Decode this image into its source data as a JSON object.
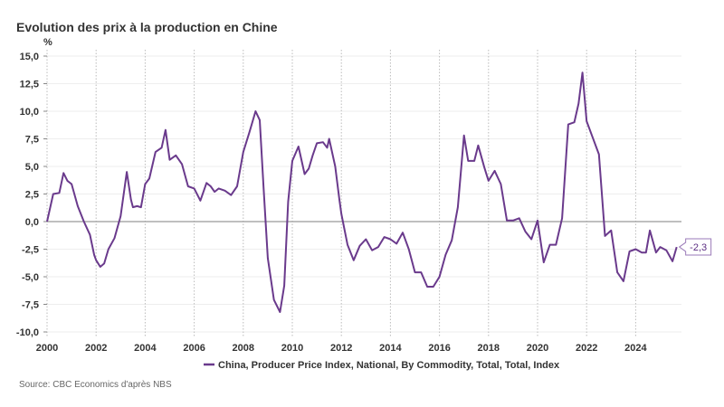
{
  "header": {
    "title": "Evolution des prix à la production en Chine",
    "source": "Source: CBC Economics d'après NBS"
  },
  "colors": {
    "series": "#6a3a8c",
    "zero_line": "#999999",
    "grid": "#eeeeee",
    "vgrid": "#bbbbbb",
    "callout_border": "#9a7ab8"
  },
  "chart_data": {
    "type": "line",
    "title": "Evolution des prix à la production en Chine",
    "ylabel": "%",
    "xlabel": "",
    "ylim": [
      -10,
      15
    ],
    "xlim": [
      2000,
      2025.75
    ],
    "yticks": [
      15,
      12.5,
      10,
      7.5,
      5,
      2.5,
      0,
      -2.5,
      -5,
      -7.5,
      -10
    ],
    "ytick_labels": [
      "15,0",
      "12,5",
      "10,0",
      "7,5",
      "5,0",
      "2,5",
      "0,0",
      "-2,5",
      "-5,0",
      "-7,5",
      "-10,0"
    ],
    "xticks": [
      2000,
      2002,
      2004,
      2006,
      2008,
      2010,
      2012,
      2014,
      2016,
      2018,
      2020,
      2022,
      2024
    ],
    "xtick_labels": [
      "2000",
      "2002",
      "2004",
      "2006",
      "2008",
      "2010",
      "2012",
      "2014",
      "2016",
      "2018",
      "2020",
      "2022",
      "2024"
    ],
    "grid": "horizontal solid, vertical dotted at x ticks",
    "legend_position": "bottom-center",
    "last_value_label": "-2,3",
    "series": [
      {
        "name": "China, Producer Price Index, National, By Commodity, Total, Total, Index",
        "x": [
          2000.0,
          2000.25,
          2000.5,
          2000.67,
          2000.83,
          2001.0,
          2001.25,
          2001.5,
          2001.75,
          2001.92,
          2002.0,
          2002.17,
          2002.33,
          2002.5,
          2002.75,
          2003.0,
          2003.25,
          2003.42,
          2003.5,
          2003.67,
          2003.83,
          2004.0,
          2004.17,
          2004.42,
          2004.67,
          2004.83,
          2005.0,
          2005.25,
          2005.5,
          2005.75,
          2006.0,
          2006.25,
          2006.5,
          2006.67,
          2006.83,
          2007.0,
          2007.25,
          2007.5,
          2007.75,
          2008.0,
          2008.25,
          2008.5,
          2008.67,
          2008.83,
          2009.0,
          2009.25,
          2009.5,
          2009.67,
          2009.83,
          2010.0,
          2010.25,
          2010.5,
          2010.67,
          2010.83,
          2011.0,
          2011.25,
          2011.42,
          2011.5,
          2011.75,
          2011.92,
          2012.0,
          2012.25,
          2012.5,
          2012.75,
          2013.0,
          2013.25,
          2013.5,
          2013.75,
          2014.0,
          2014.25,
          2014.5,
          2014.75,
          2015.0,
          2015.25,
          2015.5,
          2015.75,
          2016.0,
          2016.25,
          2016.5,
          2016.75,
          2017.0,
          2017.17,
          2017.42,
          2017.58,
          2017.83,
          2018.0,
          2018.25,
          2018.5,
          2018.75,
          2019.0,
          2019.25,
          2019.5,
          2019.75,
          2020.0,
          2020.25,
          2020.5,
          2020.75,
          2021.0,
          2021.25,
          2021.5,
          2021.67,
          2021.83,
          2022.0,
          2022.25,
          2022.5,
          2022.75,
          2023.0,
          2023.25,
          2023.5,
          2023.75,
          2024.0,
          2024.25,
          2024.42,
          2024.58,
          2024.83,
          2025.0,
          2025.25,
          2025.5,
          2025.67
        ],
        "values": [
          0.0,
          2.5,
          2.6,
          4.4,
          3.7,
          3.4,
          1.4,
          0.0,
          -1.2,
          -3.0,
          -3.5,
          -4.1,
          -3.8,
          -2.5,
          -1.5,
          0.5,
          4.5,
          2.0,
          1.3,
          1.4,
          1.3,
          3.4,
          3.9,
          6.3,
          6.7,
          8.3,
          5.6,
          6.0,
          5.2,
          3.2,
          3.0,
          1.9,
          3.5,
          3.2,
          2.7,
          3.0,
          2.8,
          2.4,
          3.2,
          6.3,
          8.1,
          10.0,
          9.2,
          3.0,
          -3.3,
          -7.1,
          -8.2,
          -5.8,
          1.8,
          5.5,
          6.8,
          4.3,
          4.8,
          6.0,
          7.1,
          7.2,
          6.7,
          7.5,
          5.0,
          2.0,
          0.7,
          -2.1,
          -3.5,
          -2.2,
          -1.6,
          -2.6,
          -2.3,
          -1.4,
          -1.6,
          -2.0,
          -1.0,
          -2.5,
          -4.6,
          -4.6,
          -5.9,
          -5.9,
          -5.0,
          -3.0,
          -1.7,
          1.3,
          7.8,
          5.5,
          5.5,
          6.9,
          4.9,
          3.7,
          4.6,
          3.4,
          0.1,
          0.1,
          0.3,
          -0.9,
          -1.6,
          0.1,
          -3.7,
          -2.1,
          -2.1,
          0.3,
          8.8,
          9.0,
          10.7,
          13.5,
          9.1,
          7.6,
          6.1,
          -1.3,
          -0.8,
          -4.6,
          -5.4,
          -2.7,
          -2.5,
          -2.8,
          -2.8,
          -0.8,
          -2.8,
          -2.3,
          -2.6,
          -3.6,
          -2.3
        ]
      }
    ]
  }
}
